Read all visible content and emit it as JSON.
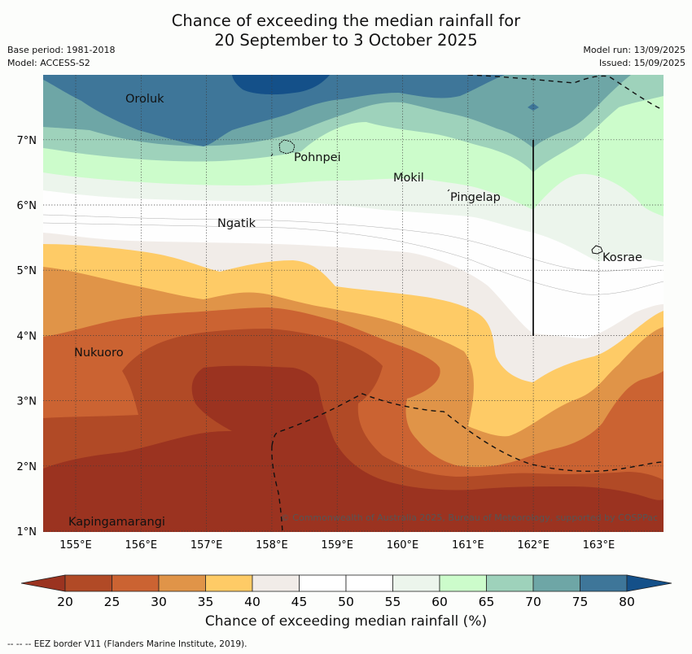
{
  "header": {
    "title_line1": "Chance of exceeding the median rainfall for",
    "title_line2": "20 September to 3 October 2025",
    "base_period": "Base period: 1981-2018",
    "model": "Model: ACCESS-S2",
    "model_run": "Model run: 13/09/2025",
    "issued": "Issued: 15/09/2025"
  },
  "map": {
    "lon_ticks": [
      "155°E",
      "156°E",
      "157°E",
      "158°E",
      "159°E",
      "160°E",
      "161°E",
      "162°E",
      "163°E"
    ],
    "lat_ticks": [
      "1°N",
      "2°N",
      "3°N",
      "4°N",
      "5°N",
      "6°N",
      "7°N"
    ],
    "places": [
      "Oroluk",
      "Pohnpei",
      "Mokil",
      "Pingelap",
      "Ngatik",
      "Kosrae",
      "Nukuoro",
      "Kapingamarangi"
    ],
    "copyright": "© Commonwealth of Australia 2025, Bureau of Meteorology, supported by COSPPac"
  },
  "colorbar": {
    "ticks": [
      "20",
      "25",
      "30",
      "35",
      "40",
      "45",
      "50",
      "55",
      "60",
      "65",
      "70",
      "75",
      "80"
    ],
    "colors": [
      "#9b3320",
      "#b14a26",
      "#cb6332",
      "#e09448",
      "#fecb66",
      "#f1ece8",
      "#ffffff",
      "#ffffff",
      "#ecf5ec",
      "#ccfccb",
      "#9ed2bb",
      "#6ea6a6",
      "#3e7699",
      "#145089"
    ],
    "label": "Chance of exceeding median rainfall (%)"
  },
  "footnote": "--  --  -- EEZ border V11 (Flanders Marine Institute, 2019)."
}
